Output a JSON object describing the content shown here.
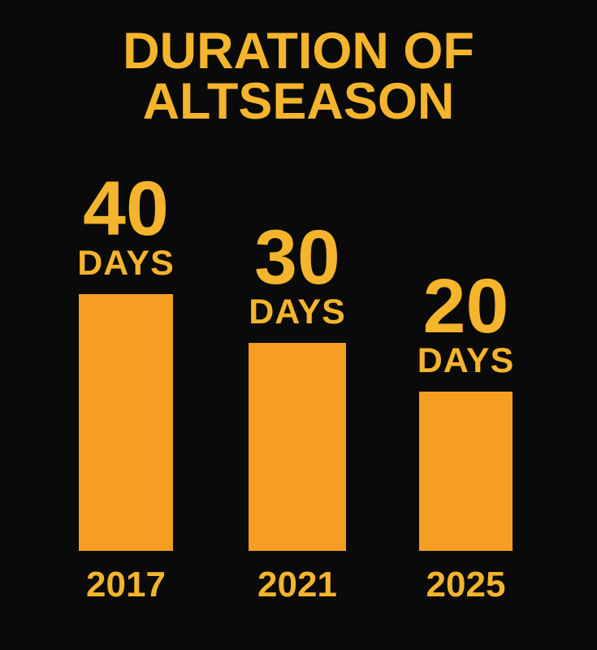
{
  "title": {
    "line1": "DURATION OF",
    "line2": "ALTSEASON"
  },
  "colors": {
    "background": "#0a0a0a",
    "text_gold": "#f4b42c",
    "bar_orange": "#f59e22"
  },
  "chart_data": {
    "type": "bar",
    "title": "DURATION OF ALTSEASON",
    "categories": [
      "2017",
      "2021",
      "2025"
    ],
    "values": [
      40,
      30,
      20
    ],
    "unit": "DAYS",
    "orientation": "vertical",
    "legend": "none",
    "grid": false,
    "bars": [
      {
        "value": "40",
        "unit": "DAYS",
        "year": "2017"
      },
      {
        "value": "30",
        "unit": "DAYS",
        "year": "2021"
      },
      {
        "value": "20",
        "unit": "DAYS",
        "year": "2025"
      }
    ]
  }
}
